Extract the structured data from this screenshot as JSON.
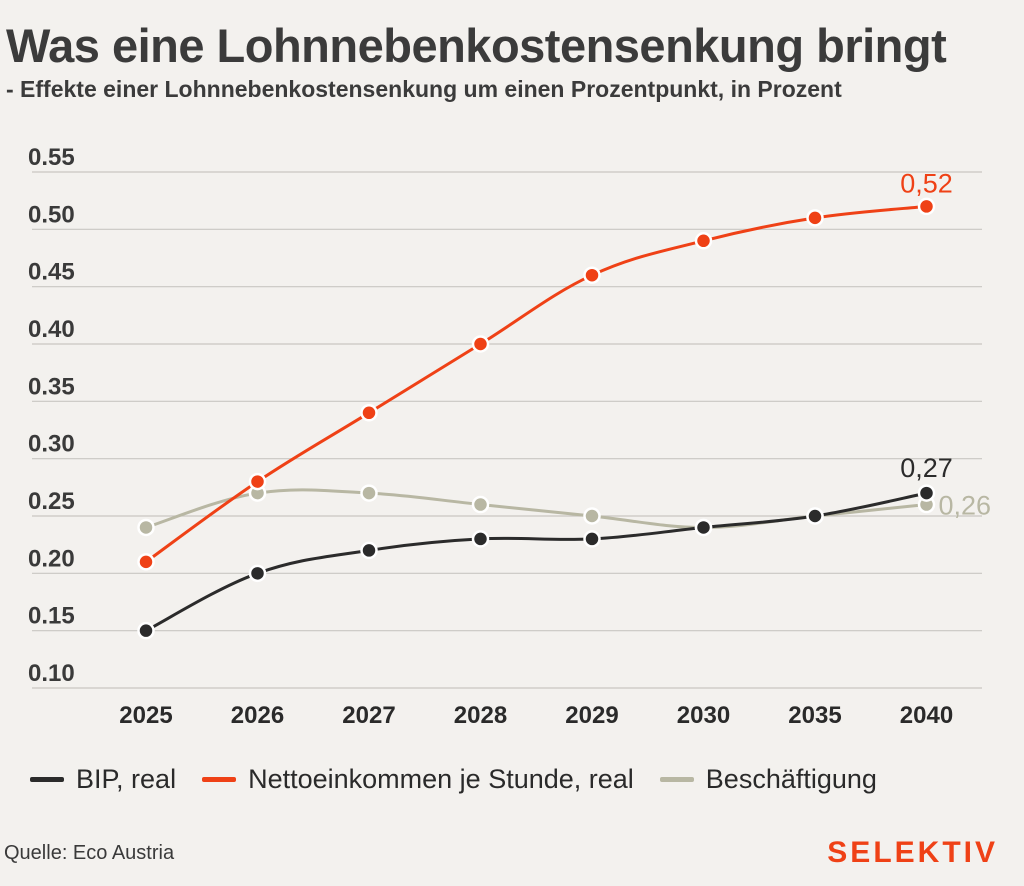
{
  "header": {
    "title": "Was eine Lohnnebenkostensenkung bringt",
    "subtitle": "- Effekte einer Lohnnebenkostensenkung um einen Prozentpunkt, in Prozent"
  },
  "chart_data": {
    "type": "line",
    "x": [
      "2025",
      "2026",
      "2027",
      "2028",
      "2029",
      "2030",
      "2035",
      "2040"
    ],
    "yticks": [
      "0.10",
      "0.15",
      "0.20",
      "0.25",
      "0.30",
      "0.35",
      "0.40",
      "0.45",
      "0.50",
      "0.55"
    ],
    "ylim": [
      0.1,
      0.55
    ],
    "grid": true,
    "legend_position": "bottom",
    "series": [
      {
        "name": "BIP, real",
        "color": "#2b2b2b",
        "values": [
          0.15,
          0.2,
          0.22,
          0.23,
          0.23,
          0.24,
          0.25,
          0.27
        ],
        "end_label": "0,27",
        "end_label_color": "#2b2b2b"
      },
      {
        "name": "Nettoeinkommen je Stunde, real",
        "color": "#ef4116",
        "values": [
          0.21,
          0.28,
          0.34,
          0.4,
          0.46,
          0.49,
          0.51,
          0.52
        ],
        "end_label": "0,52",
        "end_label_color": "#ef4116"
      },
      {
        "name": "Beschäftigung",
        "color": "#b8b7a3",
        "values": [
          0.24,
          0.27,
          0.27,
          0.26,
          0.25,
          0.24,
          0.25,
          0.26
        ],
        "end_label": "0,26",
        "end_label_color": "#b8b7a3"
      }
    ]
  },
  "footer": {
    "source": "Quelle: Eco Austria",
    "brand": "SELEKTIV",
    "brand_color": "#ef4116"
  }
}
